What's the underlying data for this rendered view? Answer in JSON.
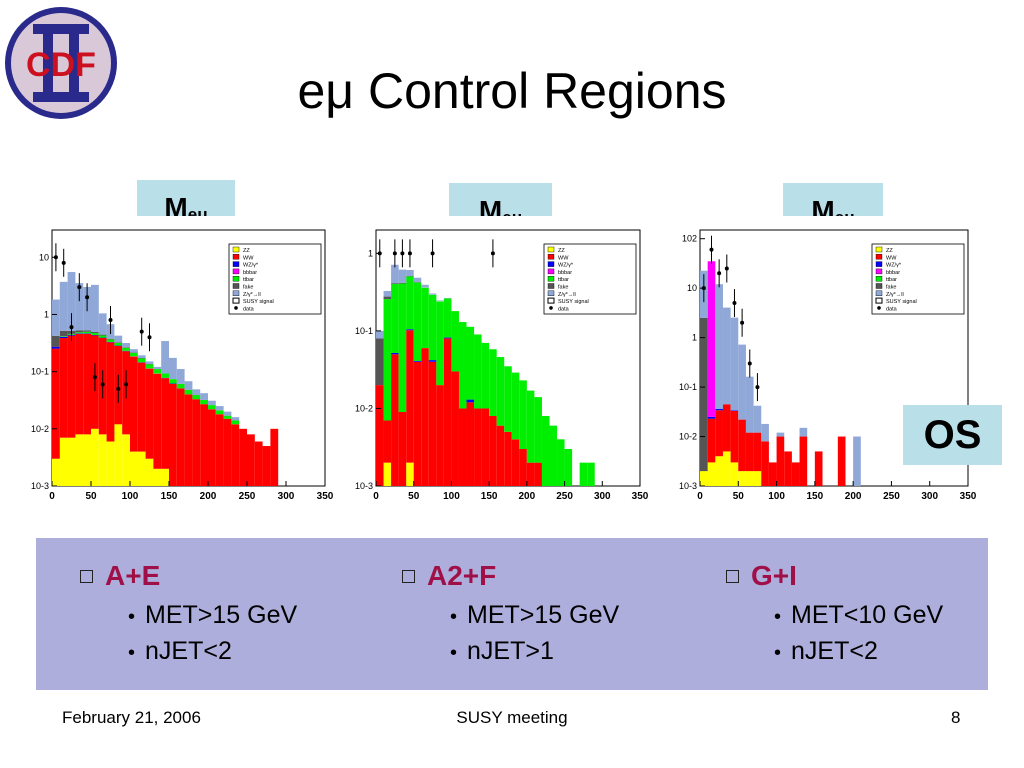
{
  "slide": {
    "title": "eμ Control Regions",
    "logo_text": "CDF",
    "os_label": "OS",
    "footer_date": "February 21, 2006",
    "footer_center": "SUSY meeting",
    "footer_page": "8"
  },
  "colors": {
    "ZZ": "#ffff00",
    "WW": "#ff0000",
    "WZ": "#0000ff",
    "bbbar": "#ff00ff",
    "ttbar": "#00ee00",
    "fake": "#555555",
    "Zgamma": "#8fa8d8",
    "label_box": "#b9dfe8",
    "panel": "#aeaedc",
    "region_title": "#a01048"
  },
  "plots": [
    {
      "label_main": "M",
      "label_sub": "eμ"
    },
    {
      "label_main": "M",
      "label_sub": "eμ"
    },
    {
      "label_main": "M",
      "label_sub": "eμ"
    }
  ],
  "legend": [
    "ZZ",
    "WW",
    "WZ/γ*",
    "bbbar",
    "ttbar",
    "fake",
    "Z/γ*→ll",
    "SUSY signal",
    "data"
  ],
  "regions": [
    {
      "name": "A+E",
      "cuts": [
        "MET>15 GeV",
        "nJET<2"
      ]
    },
    {
      "name": "A2+F",
      "cuts": [
        "MET>15 GeV",
        "nJET>1"
      ]
    },
    {
      "name": "G+I",
      "cuts": [
        "MET<10 GeV",
        "nJET<2"
      ]
    }
  ],
  "chart_data": [
    {
      "type": "bar",
      "stacked": true,
      "log_y": true,
      "ylim": [
        0.001,
        30
      ],
      "xlim": [
        0,
        350
      ],
      "x_ticks": [
        "0",
        "50",
        "100",
        "150",
        "200",
        "250",
        "300",
        "350"
      ],
      "y_ticks": [
        "10^-3",
        "10^-2",
        "10^-1",
        "1",
        "10"
      ],
      "bin_width": 10,
      "series": [
        {
          "name": "ZZ",
          "values": [
            0.003,
            0.007,
            0.007,
            0.008,
            0.008,
            0.01,
            0.008,
            0.006,
            0.012,
            0.008,
            0.004,
            0.004,
            0.003,
            0.002,
            0.002,
            0.001,
            0.001,
            0,
            0,
            0,
            0,
            0,
            0,
            0,
            0,
            0,
            0,
            0,
            0,
            0
          ]
        },
        {
          "name": "WW",
          "values": [
            0.25,
            0.38,
            0.42,
            0.45,
            0.45,
            0.42,
            0.38,
            0.32,
            0.27,
            0.22,
            0.18,
            0.14,
            0.11,
            0.09,
            0.075,
            0.06,
            0.05,
            0.04,
            0.033,
            0.027,
            0.022,
            0.018,
            0.015,
            0.012,
            0.01,
            0.008,
            0.006,
            0.005,
            0.01,
            0
          ]
        },
        {
          "name": "WZ/γ*",
          "values": [
            0.02,
            0.02,
            0.015,
            0.01,
            0.01,
            0.008,
            0.006,
            0.005,
            0.004,
            0.003,
            0.002,
            0.002,
            0.001,
            0.001,
            0.001,
            0.001,
            0,
            0,
            0,
            0,
            0,
            0,
            0,
            0,
            0,
            0,
            0,
            0,
            0,
            0
          ]
        },
        {
          "name": "ttbar",
          "values": [
            0,
            0.01,
            0.015,
            0.02,
            0.03,
            0.035,
            0.035,
            0.035,
            0.032,
            0.03,
            0.027,
            0.024,
            0.02,
            0.018,
            0.015,
            0.012,
            0.01,
            0.008,
            0.006,
            0.005,
            0.004,
            0.003,
            0.002,
            0.002,
            0,
            0,
            0,
            0,
            0,
            0
          ]
        },
        {
          "name": "fake",
          "values": [
            0.15,
            0.1,
            0.06,
            0.04,
            0.03,
            0.02,
            0.015,
            0.01,
            0.008,
            0.006,
            0.004,
            0.003,
            0.002,
            0,
            0,
            0,
            0,
            0,
            0,
            0,
            0,
            0,
            0,
            0,
            0,
            0,
            0,
            0,
            0,
            0
          ]
        },
        {
          "name": "Z/γ*→ll",
          "values": [
            1.4,
            3.2,
            5,
            3,
            2.5,
            2.8,
            0.6,
            0.3,
            0.1,
            0.05,
            0.03,
            0.02,
            0.015,
            0.01,
            0.25,
            0.1,
            0.05,
            0.02,
            0.01,
            0.01,
            0.005,
            0.004,
            0.003,
            0.002,
            0,
            0,
            0,
            0,
            0,
            0
          ]
        }
      ],
      "data_points": [
        [
          5,
          10
        ],
        [
          15,
          8
        ],
        [
          25,
          0.6
        ],
        [
          35,
          3
        ],
        [
          45,
          2
        ],
        [
          55,
          0.08
        ],
        [
          65,
          0.06
        ],
        [
          75,
          0.8
        ],
        [
          85,
          0.05
        ],
        [
          95,
          0.06
        ],
        [
          115,
          0.5
        ],
        [
          125,
          0.4
        ]
      ]
    },
    {
      "type": "bar",
      "stacked": true,
      "log_y": true,
      "ylim": [
        0.001,
        2
      ],
      "xlim": [
        0,
        350
      ],
      "x_ticks": [
        "0",
        "50",
        "100",
        "150",
        "200",
        "250",
        "300",
        "350"
      ],
      "y_ticks": [
        "10^-3",
        "10^-2",
        "10^-1",
        "1"
      ],
      "bin_width": 10,
      "series": [
        {
          "name": "ZZ",
          "values": [
            0,
            0.002,
            0,
            0.001,
            0.002,
            0,
            0,
            0,
            0,
            0,
            0,
            0,
            0,
            0,
            0,
            0,
            0,
            0,
            0,
            0,
            0,
            0,
            0,
            0,
            0,
            0,
            0,
            0,
            0,
            0
          ]
        },
        {
          "name": "WW",
          "values": [
            0.02,
            0.005,
            0.05,
            0.008,
            0.1,
            0.04,
            0.06,
            0.04,
            0.02,
            0.08,
            0.03,
            0.01,
            0.012,
            0.01,
            0.01,
            0.008,
            0.006,
            0.005,
            0.004,
            0.003,
            0.002,
            0.002,
            0,
            0,
            0,
            0,
            0,
            0,
            0,
            0
          ]
        },
        {
          "name": "WZ/γ*",
          "values": [
            0,
            0,
            0.002,
            0,
            0.003,
            0.001,
            0,
            0.002,
            0,
            0.002,
            0,
            0,
            0.001,
            0,
            0,
            0,
            0,
            0,
            0,
            0,
            0,
            0,
            0,
            0,
            0,
            0,
            0,
            0,
            0,
            0
          ]
        },
        {
          "name": "ttbar",
          "values": [
            0,
            0.25,
            0.35,
            0.4,
            0.4,
            0.38,
            0.3,
            0.25,
            0.22,
            0.18,
            0.15,
            0.12,
            0.1,
            0.08,
            0.06,
            0.05,
            0.04,
            0.03,
            0.025,
            0.02,
            0.015,
            0.012,
            0.008,
            0.006,
            0.004,
            0.003,
            0,
            0.002,
            0.002,
            0
          ]
        },
        {
          "name": "fake",
          "values": [
            0.06,
            0.02,
            0.01,
            0.008,
            0.005,
            0.004,
            0.003,
            0.002,
            0.002,
            0,
            0,
            0,
            0,
            0,
            0,
            0,
            0,
            0,
            0,
            0,
            0,
            0,
            0,
            0,
            0,
            0,
            0,
            0,
            0,
            0
          ]
        },
        {
          "name": "Z/γ*→ll",
          "values": [
            0.02,
            0.05,
            0.3,
            0.2,
            0.1,
            0.06,
            0.03,
            0.01,
            0.005,
            0.003,
            0,
            0,
            0,
            0,
            0,
            0,
            0,
            0,
            0,
            0,
            0,
            0,
            0,
            0,
            0,
            0,
            0,
            0,
            0,
            0
          ]
        }
      ],
      "data_points": [
        [
          5,
          1
        ],
        [
          25,
          1
        ],
        [
          35,
          1
        ],
        [
          45,
          1
        ],
        [
          75,
          1
        ],
        [
          155,
          1
        ]
      ]
    },
    {
      "type": "bar",
      "stacked": true,
      "log_y": true,
      "ylim": [
        0.001,
        150
      ],
      "xlim": [
        0,
        350
      ],
      "x_ticks": [
        "0",
        "50",
        "100",
        "150",
        "200",
        "250",
        "300",
        "350"
      ],
      "y_ticks": [
        "10^-3",
        "10^-2",
        "10^-1",
        "1",
        "10",
        "10^2"
      ],
      "bin_width": 10,
      "series": [
        {
          "name": "ZZ",
          "values": [
            0.002,
            0.003,
            0.004,
            0.005,
            0.003,
            0.002,
            0.002,
            0.002,
            0,
            0,
            0,
            0,
            0,
            0,
            0,
            0,
            0,
            0,
            0,
            0,
            0,
            0,
            0,
            0,
            0,
            0,
            0,
            0,
            0,
            0
          ]
        },
        {
          "name": "WW",
          "values": [
            0,
            0.02,
            0.03,
            0.04,
            0.03,
            0.02,
            0.01,
            0.01,
            0.008,
            0.003,
            0.01,
            0.005,
            0.003,
            0.01,
            0,
            0.005,
            0,
            0,
            0.01,
            0,
            0,
            0,
            0,
            0,
            0,
            0,
            0,
            0,
            0,
            0
          ]
        },
        {
          "name": "WZ/γ*",
          "values": [
            0,
            0.002,
            0.002,
            0,
            0.001,
            0,
            0,
            0,
            0,
            0,
            0,
            0,
            0,
            0,
            0,
            0,
            0,
            0,
            0,
            0,
            0,
            0,
            0,
            0,
            0,
            0,
            0,
            0,
            0,
            0
          ]
        },
        {
          "name": "bbbar",
          "values": [
            0,
            35,
            0,
            0,
            0,
            0,
            0,
            0,
            0,
            0,
            0,
            0,
            0,
            0,
            0,
            0,
            0,
            0,
            0,
            0,
            0,
            0,
            0,
            0,
            0,
            0,
            0,
            0,
            0,
            0
          ]
        },
        {
          "name": "fake",
          "values": [
            2.5,
            0,
            0,
            0,
            0,
            0,
            0,
            0,
            0,
            0,
            0,
            0,
            0,
            0,
            0,
            0,
            0,
            0,
            0,
            0,
            0,
            0,
            0,
            0,
            0,
            0,
            0,
            0,
            0,
            0
          ]
        },
        {
          "name": "Z/γ*→ll",
          "values": [
            20,
            0,
            12,
            4,
            2.5,
            0.7,
            0.15,
            0.03,
            0.01,
            0,
            0.002,
            0,
            0,
            0.005,
            0,
            0,
            0,
            0,
            0,
            0,
            0.01,
            0,
            0,
            0,
            0,
            0,
            0,
            0,
            0,
            0
          ]
        }
      ],
      "data_points": [
        [
          5,
          10
        ],
        [
          15,
          60
        ],
        [
          25,
          20
        ],
        [
          35,
          25
        ],
        [
          45,
          5
        ],
        [
          55,
          2
        ],
        [
          65,
          0.3
        ],
        [
          75,
          0.1
        ]
      ]
    }
  ]
}
